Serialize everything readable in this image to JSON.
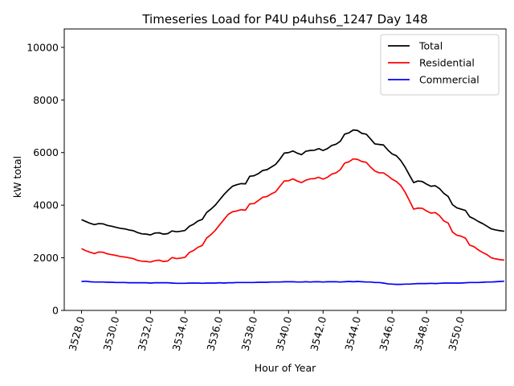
{
  "chart_data": {
    "type": "line",
    "title": "Timeseries Load for P4U p4uhs6_1247  Day 148",
    "xlabel": "Hour of Year",
    "ylabel": "kW total",
    "xlim": [
      3527.0,
      3552.6
    ],
    "ylim": [
      0,
      10700
    ],
    "xticks": [
      3528,
      3530,
      3532,
      3534,
      3536,
      3538,
      3540,
      3542,
      3544,
      3546,
      3548,
      3550
    ],
    "xtick_labels": [
      "3528.0",
      "3530.0",
      "3532.0",
      "3534.0",
      "3536.0",
      "3538.0",
      "3540.0",
      "3542.0",
      "3544.0",
      "3546.0",
      "3548.0",
      "3550.0"
    ],
    "yticks": [
      0,
      2000,
      4000,
      6000,
      8000,
      10000
    ],
    "ytick_labels": [
      "0",
      "2000",
      "4000",
      "6000",
      "8000",
      "10000"
    ],
    "legend_position": "top-right",
    "x_start": 3528.0,
    "x_step": 0.25,
    "series": [
      {
        "name": "Total",
        "color": "#000000",
        "values": [
          3450,
          3380,
          3310,
          3260,
          3300,
          3290,
          3230,
          3200,
          3160,
          3120,
          3100,
          3060,
          3030,
          2960,
          2910,
          2900,
          2870,
          2940,
          2950,
          2900,
          2920,
          3020,
          2990,
          3010,
          3040,
          3200,
          3280,
          3400,
          3460,
          3720,
          3850,
          4000,
          4200,
          4400,
          4570,
          4720,
          4780,
          4820,
          4810,
          5100,
          5120,
          5200,
          5320,
          5350,
          5450,
          5550,
          5750,
          5980,
          6000,
          6060,
          5980,
          5920,
          6050,
          6080,
          6090,
          6150,
          6080,
          6150,
          6270,
          6320,
          6430,
          6700,
          6750,
          6860,
          6840,
          6730,
          6700,
          6520,
          6330,
          6310,
          6290,
          6100,
          5950,
          5880,
          5700,
          5450,
          5150,
          4860,
          4920,
          4900,
          4800,
          4720,
          4740,
          4630,
          4450,
          4330,
          4020,
          3900,
          3850,
          3800,
          3560,
          3480,
          3380,
          3300,
          3200,
          3100,
          3060,
          3030,
          3010
        ]
      },
      {
        "name": "Residential",
        "color": "#ff0000",
        "values": [
          2350,
          2270,
          2210,
          2160,
          2220,
          2210,
          2150,
          2120,
          2090,
          2050,
          2030,
          2000,
          1970,
          1900,
          1870,
          1860,
          1840,
          1890,
          1910,
          1860,
          1880,
          2010,
          1970,
          1990,
          2020,
          2200,
          2280,
          2400,
          2470,
          2750,
          2880,
          3040,
          3250,
          3450,
          3650,
          3750,
          3780,
          3830,
          3810,
          4050,
          4060,
          4180,
          4300,
          4330,
          4430,
          4510,
          4720,
          4920,
          4930,
          5000,
          4920,
          4860,
          4950,
          5000,
          5010,
          5060,
          4990,
          5060,
          5180,
          5230,
          5350,
          5600,
          5650,
          5760,
          5740,
          5660,
          5630,
          5450,
          5300,
          5230,
          5230,
          5120,
          4990,
          4900,
          4750,
          4500,
          4180,
          3850,
          3890,
          3880,
          3780,
          3700,
          3720,
          3600,
          3400,
          3320,
          2980,
          2860,
          2820,
          2750,
          2480,
          2420,
          2300,
          2200,
          2120,
          2000,
          1960,
          1930,
          1910
        ]
      },
      {
        "name": "Commercial",
        "color": "#0000ff",
        "values": [
          1100,
          1110,
          1090,
          1080,
          1080,
          1080,
          1070,
          1070,
          1060,
          1060,
          1060,
          1050,
          1050,
          1050,
          1050,
          1050,
          1040,
          1050,
          1050,
          1050,
          1050,
          1040,
          1030,
          1030,
          1030,
          1040,
          1040,
          1040,
          1030,
          1040,
          1040,
          1040,
          1050,
          1040,
          1050,
          1050,
          1060,
          1060,
          1060,
          1060,
          1060,
          1070,
          1070,
          1070,
          1080,
          1080,
          1080,
          1090,
          1090,
          1090,
          1080,
          1080,
          1090,
          1080,
          1090,
          1090,
          1080,
          1090,
          1090,
          1090,
          1080,
          1090,
          1100,
          1090,
          1100,
          1090,
          1080,
          1080,
          1060,
          1060,
          1040,
          1010,
          1000,
          990,
          990,
          1000,
          1000,
          1010,
          1020,
          1020,
          1020,
          1030,
          1020,
          1030,
          1040,
          1040,
          1040,
          1040,
          1040,
          1050,
          1060,
          1060,
          1060,
          1070,
          1080,
          1080,
          1090,
          1100,
          1110
        ]
      }
    ]
  }
}
